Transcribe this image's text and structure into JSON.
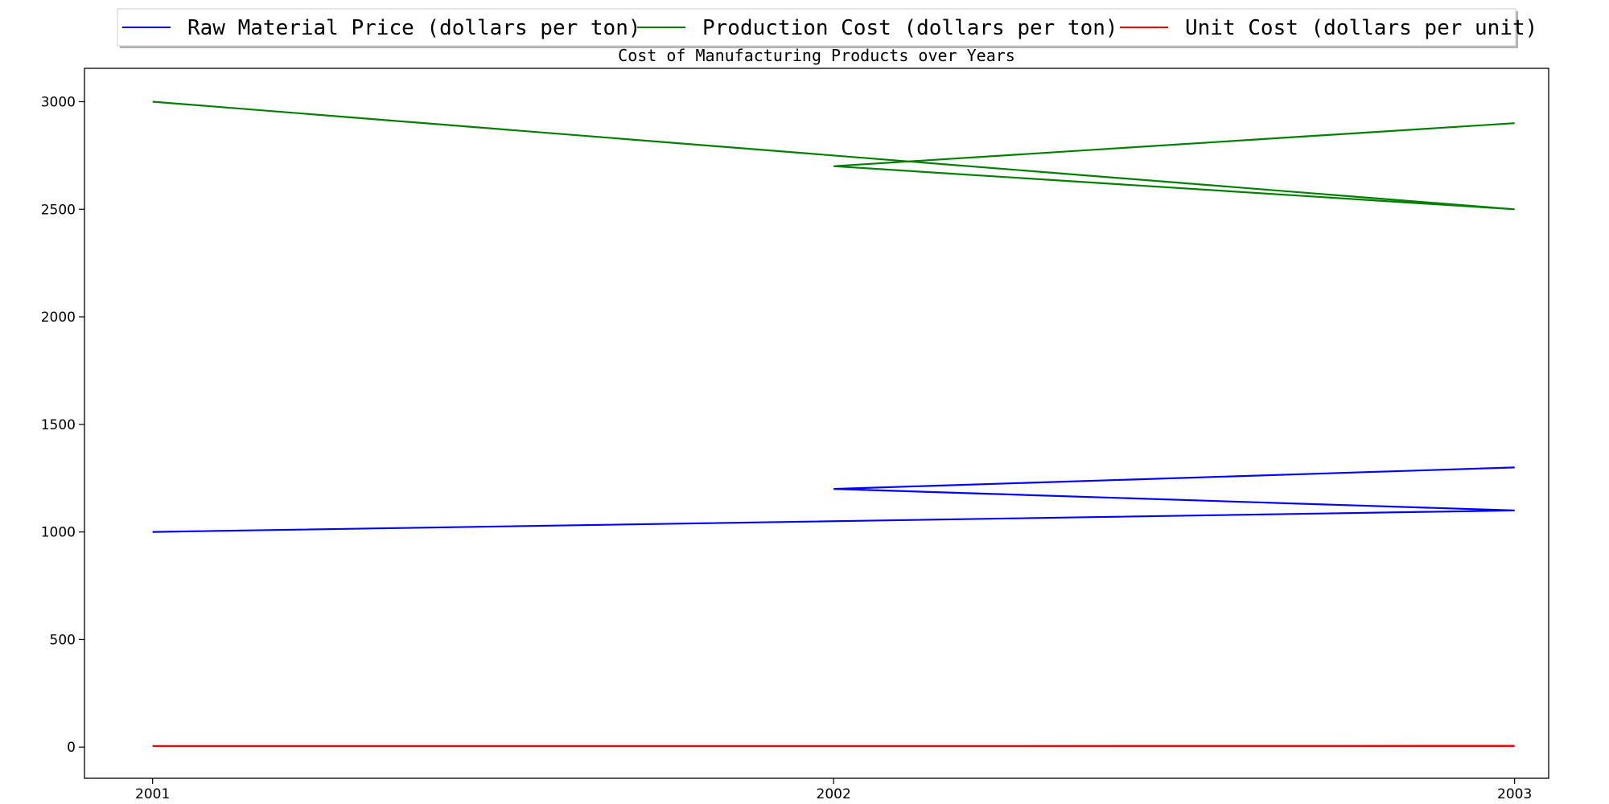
{
  "chart_data": {
    "type": "line",
    "title": "Cost of Manufacturing Products over Years",
    "xlabel": "",
    "ylabel": "",
    "x_ticks": [
      "2001",
      "2002",
      "2003"
    ],
    "y_ticks": [
      0,
      500,
      1000,
      1500,
      2000,
      2500,
      3000
    ],
    "ylim": [
      -145,
      3155
    ],
    "x_range": [
      2000.9,
      2003.05
    ],
    "grid": false,
    "legend_position": "top-center",
    "series": [
      {
        "name": "Raw Material Price (dollars per ton)",
        "color": "#0000ff",
        "points": [
          {
            "x": 2001,
            "y": 1000
          },
          {
            "x": 2003,
            "y": 1100
          },
          {
            "x": 2002,
            "y": 1200
          },
          {
            "x": 2003,
            "y": 1300
          }
        ]
      },
      {
        "name": "Production Cost (dollars per ton)",
        "color": "#008000",
        "points": [
          {
            "x": 2001,
            "y": 3000
          },
          {
            "x": 2003,
            "y": 2500
          },
          {
            "x": 2002,
            "y": 2700
          },
          {
            "x": 2003,
            "y": 2900
          }
        ]
      },
      {
        "name": "Unit Cost (dollars per unit)",
        "color": "#ff0000",
        "points": [
          {
            "x": 2001,
            "y": 5
          },
          {
            "x": 2003,
            "y": 5
          },
          {
            "x": 2002,
            "y": 5
          },
          {
            "x": 2003,
            "y": 6
          }
        ]
      }
    ]
  }
}
